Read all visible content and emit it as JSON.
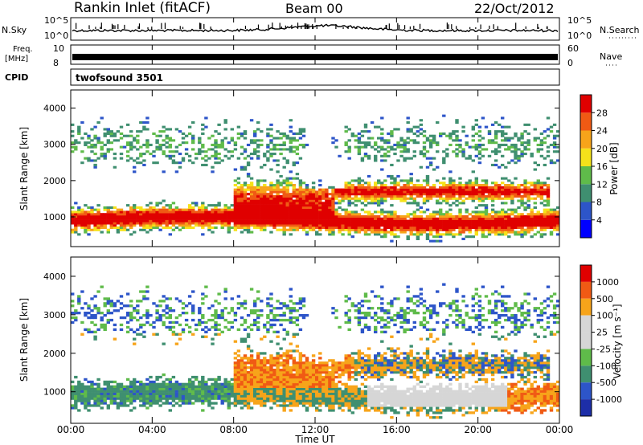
{
  "header": {
    "station": "Rankin Inlet (fitACF)",
    "beam": "Beam 00",
    "date": "22/Oct/2012"
  },
  "params": {
    "nsky_label": "N.Sky",
    "nsearch_label": "N.Search",
    "freq_label_1": "Freq.",
    "freq_label_2": "[MHz]",
    "nave_label": "Nave",
    "cpid_label": "CPID",
    "cpid_value": "twofsound 3501",
    "noise_ticks": [
      "10^5",
      "10^0"
    ],
    "freq_ticks": [
      "10",
      "8"
    ],
    "nave_ticks": [
      "60",
      "0"
    ]
  },
  "axes": {
    "ylabel": "Slant Range [km]",
    "xlabel": "Time UT",
    "xticks": [
      "00:00",
      "04:00",
      "08:00",
      "12:00",
      "16:00",
      "20:00",
      "00:00"
    ],
    "yticks": [
      "1000",
      "2000",
      "3000",
      "4000"
    ]
  },
  "colors": {
    "power": [
      "#0000ff",
      "#2d55c9",
      "#3f8f70",
      "#5fbb4a",
      "#f5e21a",
      "#f7a41a",
      "#f05a14",
      "#e00000"
    ],
    "velocity": [
      "#e00000",
      "#f05a14",
      "#f7a41a",
      "#d6d6d6",
      "#d6d6d6",
      "#5fbb4a",
      "#3f8f70",
      "#2d55c9",
      "#1d2ea8"
    ]
  },
  "chart_data": [
    {
      "type": "heatmap",
      "panel": "Power",
      "colorbar_label": "Power [dB]",
      "colorbar_ticks": [
        "4",
        "8",
        "12",
        "16",
        "20",
        "24",
        "28"
      ],
      "xlim": [
        0,
        24
      ],
      "ylim": [
        180,
        4500
      ],
      "xlabel": "",
      "ylabel": "Slant Range [km]"
    },
    {
      "type": "heatmap",
      "panel": "Velocity",
      "colorbar_label": "Velocity [m s⁻¹]",
      "colorbar_ticks": [
        "1000",
        "500",
        "100",
        "25",
        "-25",
        "-100",
        "-500",
        "-1000"
      ],
      "xlim": [
        0,
        24
      ],
      "ylim": [
        180,
        4500
      ],
      "xlabel": "Time UT",
      "ylabel": "Slant Range [km]"
    }
  ]
}
